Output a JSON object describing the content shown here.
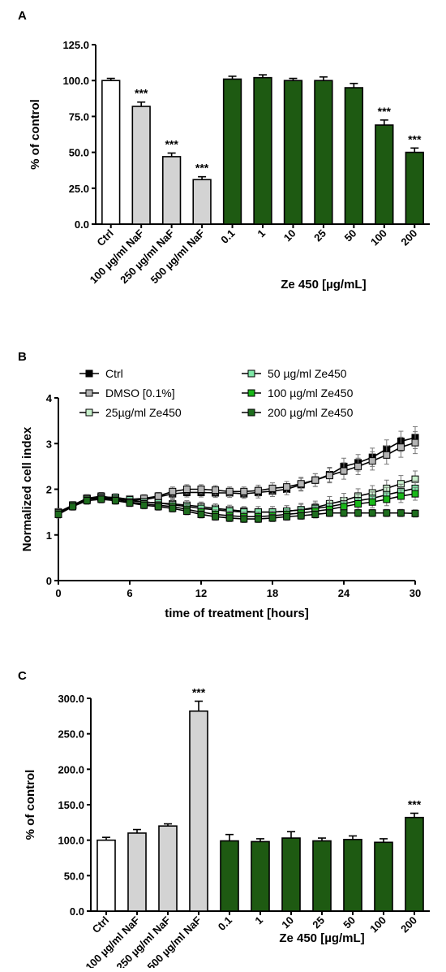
{
  "colors": {
    "ctrl_fill": "#ffffff",
    "naf_fill": "#d3d3d3",
    "ze_fill": "#1e5a12",
    "series_ctrl": "#000000",
    "series_dmso": "#b4b4b4",
    "series_25": "#c8f0cc",
    "series_50": "#7fe8a8",
    "series_100": "#19b819",
    "series_200": "#1e6e1e"
  },
  "chart_data": [
    {
      "panel": "A",
      "type": "bar",
      "ylabel": "% of control",
      "group_label": "Ze 450 [µg/mL]",
      "categories": [
        "Ctrl",
        "100 µg/ml NaF",
        "250 µg/ml NaF",
        "500 µg/ml NaF",
        "0.1",
        "1",
        "10",
        "25",
        "50",
        "100",
        "200"
      ],
      "groups": [
        "ctrl",
        "naf",
        "naf",
        "naf",
        "ze",
        "ze",
        "ze",
        "ze",
        "ze",
        "ze",
        "ze"
      ],
      "values": [
        100,
        82,
        47,
        31,
        101,
        102,
        100,
        100,
        95,
        69,
        50
      ],
      "errors": [
        1.5,
        3,
        2.5,
        2,
        2,
        2,
        1.5,
        2.5,
        3,
        3.5,
        3
      ],
      "annotations": [
        "",
        "***",
        "***",
        "***",
        "",
        "",
        "",
        "",
        "",
        "***",
        "***"
      ],
      "ylim": [
        0,
        125
      ],
      "yticks": [
        "0.0",
        "25.0",
        "50.0",
        "75.0",
        "100.0",
        "125.0"
      ]
    },
    {
      "panel": "B",
      "type": "line",
      "xlabel": "time of treatment [hours]",
      "ylabel": "Normalized cell index",
      "xlim": [
        0,
        30
      ],
      "ylim": [
        0,
        4
      ],
      "xticks": [
        "0",
        "6",
        "12",
        "18",
        "24",
        "30"
      ],
      "yticks": [
        "0",
        "1",
        "2",
        "3",
        "4"
      ],
      "x": [
        0,
        1.2,
        2.4,
        3.6,
        4.8,
        6,
        7.2,
        8.4,
        9.6,
        10.8,
        12,
        13.2,
        14.4,
        15.6,
        16.8,
        18,
        19.2,
        20.4,
        21.6,
        22.8,
        24,
        25.2,
        26.4,
        27.6,
        28.8,
        30
      ],
      "series": [
        {
          "name": "Ctrl",
          "key": "series_ctrl",
          "values": [
            1.45,
            1.65,
            1.8,
            1.82,
            1.82,
            1.78,
            1.77,
            1.83,
            1.9,
            1.93,
            1.93,
            1.92,
            1.92,
            1.9,
            1.93,
            1.96,
            2.0,
            2.1,
            2.2,
            2.32,
            2.5,
            2.58,
            2.7,
            2.88,
            3.05,
            3.13
          ],
          "errors": [
            0.08,
            0.08,
            0.08,
            0.08,
            0.08,
            0.08,
            0.08,
            0.08,
            0.1,
            0.1,
            0.1,
            0.1,
            0.1,
            0.1,
            0.12,
            0.12,
            0.12,
            0.14,
            0.14,
            0.16,
            0.18,
            0.18,
            0.2,
            0.2,
            0.22,
            0.24
          ]
        },
        {
          "name": "DMSO [0.1%]",
          "key": "series_dmso",
          "values": [
            1.5,
            1.65,
            1.8,
            1.85,
            1.8,
            1.78,
            1.8,
            1.85,
            1.95,
            2.0,
            2.0,
            1.98,
            1.95,
            1.95,
            1.97,
            2.02,
            2.05,
            2.12,
            2.2,
            2.3,
            2.4,
            2.5,
            2.62,
            2.75,
            2.92,
            3.02
          ],
          "errors": [
            0.08,
            0.08,
            0.08,
            0.08,
            0.08,
            0.08,
            0.08,
            0.08,
            0.1,
            0.1,
            0.1,
            0.1,
            0.1,
            0.1,
            0.12,
            0.12,
            0.12,
            0.14,
            0.14,
            0.16,
            0.18,
            0.18,
            0.2,
            0.2,
            0.22,
            0.24
          ]
        },
        {
          "name": "25µg/ml Ze450",
          "key": "series_25",
          "values": [
            1.48,
            1.65,
            1.78,
            1.82,
            1.8,
            1.75,
            1.72,
            1.7,
            1.68,
            1.65,
            1.62,
            1.58,
            1.55,
            1.52,
            1.5,
            1.5,
            1.52,
            1.55,
            1.6,
            1.68,
            1.75,
            1.85,
            1.92,
            2.02,
            2.12,
            2.22
          ],
          "errors": [
            0.08,
            0.08,
            0.08,
            0.08,
            0.08,
            0.08,
            0.08,
            0.08,
            0.1,
            0.1,
            0.1,
            0.1,
            0.1,
            0.1,
            0.12,
            0.12,
            0.12,
            0.14,
            0.14,
            0.16,
            0.16,
            0.16,
            0.16,
            0.18,
            0.18,
            0.18
          ]
        },
        {
          "name": "50 µg/ml Ze450",
          "key": "series_50",
          "values": [
            1.48,
            1.65,
            1.8,
            1.83,
            1.82,
            1.77,
            1.72,
            1.7,
            1.66,
            1.62,
            1.58,
            1.55,
            1.52,
            1.5,
            1.5,
            1.5,
            1.52,
            1.55,
            1.58,
            1.62,
            1.68,
            1.75,
            1.8,
            1.88,
            1.95,
            2.02
          ],
          "errors": [
            0.08,
            0.08,
            0.08,
            0.08,
            0.08,
            0.08,
            0.08,
            0.08,
            0.1,
            0.1,
            0.1,
            0.1,
            0.1,
            0.1,
            0.12,
            0.12,
            0.12,
            0.12,
            0.12,
            0.14,
            0.14,
            0.14,
            0.14,
            0.16,
            0.16,
            0.16
          ]
        },
        {
          "name": "100 µg/ml Ze450",
          "key": "series_100",
          "values": [
            1.48,
            1.65,
            1.78,
            1.8,
            1.78,
            1.72,
            1.68,
            1.65,
            1.62,
            1.56,
            1.5,
            1.45,
            1.42,
            1.4,
            1.4,
            1.42,
            1.45,
            1.48,
            1.52,
            1.56,
            1.62,
            1.68,
            1.72,
            1.78,
            1.85,
            1.9
          ],
          "errors": [
            0.08,
            0.08,
            0.08,
            0.08,
            0.08,
            0.08,
            0.08,
            0.08,
            0.1,
            0.1,
            0.1,
            0.1,
            0.1,
            0.1,
            0.1,
            0.1,
            0.1,
            0.1,
            0.1,
            0.12,
            0.12,
            0.12,
            0.12,
            0.14,
            0.14,
            0.14
          ]
        },
        {
          "name": "200 µg/ml Ze450",
          "key": "series_200",
          "values": [
            1.45,
            1.62,
            1.75,
            1.78,
            1.75,
            1.7,
            1.65,
            1.62,
            1.58,
            1.52,
            1.45,
            1.4,
            1.37,
            1.35,
            1.35,
            1.37,
            1.4,
            1.42,
            1.45,
            1.48,
            1.48,
            1.48,
            1.48,
            1.48,
            1.48,
            1.47
          ],
          "errors": [
            0.08,
            0.08,
            0.08,
            0.08,
            0.08,
            0.08,
            0.08,
            0.08,
            0.08,
            0.08,
            0.08,
            0.08,
            0.08,
            0.08,
            0.08,
            0.08,
            0.08,
            0.08,
            0.08,
            0.08,
            0.08,
            0.08,
            0.08,
            0.08,
            0.08,
            0.08
          ]
        }
      ],
      "legend": "top, two columns"
    },
    {
      "panel": "C",
      "type": "bar",
      "ylabel": "% of control",
      "group_label": "Ze 450 [µg/mL]",
      "categories": [
        "Ctrl",
        "100 µg/ml NaF",
        "250 µg/ml NaF",
        "500 µg/ml NaF",
        "0.1",
        "1",
        "10",
        "25",
        "50",
        "100",
        "200"
      ],
      "groups": [
        "ctrl",
        "naf",
        "naf",
        "naf",
        "ze",
        "ze",
        "ze",
        "ze",
        "ze",
        "ze",
        "ze"
      ],
      "values": [
        100,
        110,
        120,
        282,
        99,
        98,
        103,
        99,
        101,
        97,
        132
      ],
      "errors": [
        4,
        5,
        3,
        14,
        9,
        4,
        9,
        4,
        5,
        5,
        6
      ],
      "annotations": [
        "",
        "",
        "",
        "***",
        "",
        "",
        "",
        "",
        "",
        "",
        "***"
      ],
      "ylim": [
        0,
        300
      ],
      "yticks": [
        "0.0",
        "50.0",
        "100.0",
        "150.0",
        "200.0",
        "250.0",
        "300.0"
      ]
    }
  ]
}
